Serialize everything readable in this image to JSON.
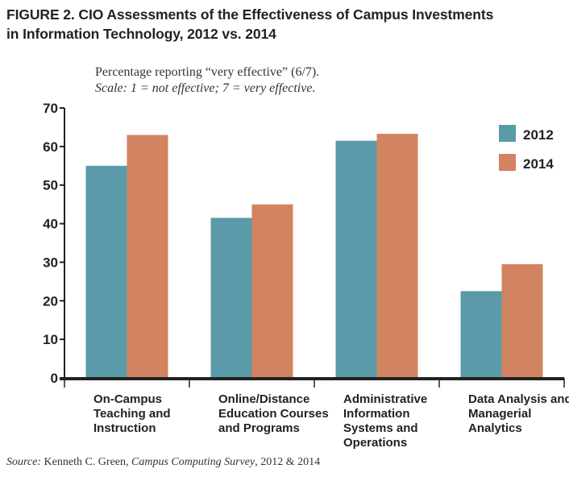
{
  "figure": {
    "title_line1": "FIGURE 2. CIO Assessments of the Effectiveness of Campus Investments",
    "title_line2": "in Information Technology, 2012 vs. 2014",
    "note_line1": "Percentage reporting “very effective” (6/7).",
    "note_line2": "Scale: 1 = not effective; 7 = very effective.",
    "source_label": "Source:",
    "source_author": " Kenneth C. Green, ",
    "source_title": "Campus Computing Survey",
    "source_years": ", 2012 & 2014"
  },
  "colors": {
    "series_2012": "#5b9aa8",
    "series_2014": "#d1845f",
    "axis": "#222222"
  },
  "chart_data": {
    "type": "bar",
    "categories": [
      [
        "On-Campus",
        "Teaching and",
        "Instruction"
      ],
      [
        "Online/Distance",
        "Education Courses",
        "and Programs"
      ],
      [
        "Administrative",
        "Information",
        "Systems and",
        "Operations"
      ],
      [
        "Data Analysis and",
        "Managerial",
        "Analytics"
      ]
    ],
    "series": [
      {
        "name": "2012",
        "values": [
          55,
          41.5,
          61.5,
          22.5
        ]
      },
      {
        "name": "2014",
        "values": [
          63,
          45,
          63.3,
          29.5
        ]
      }
    ],
    "ylim": [
      0,
      70
    ],
    "yticks": [
      0,
      10,
      20,
      30,
      40,
      50,
      60,
      70
    ],
    "grid": false,
    "legend_position": "top-right"
  }
}
